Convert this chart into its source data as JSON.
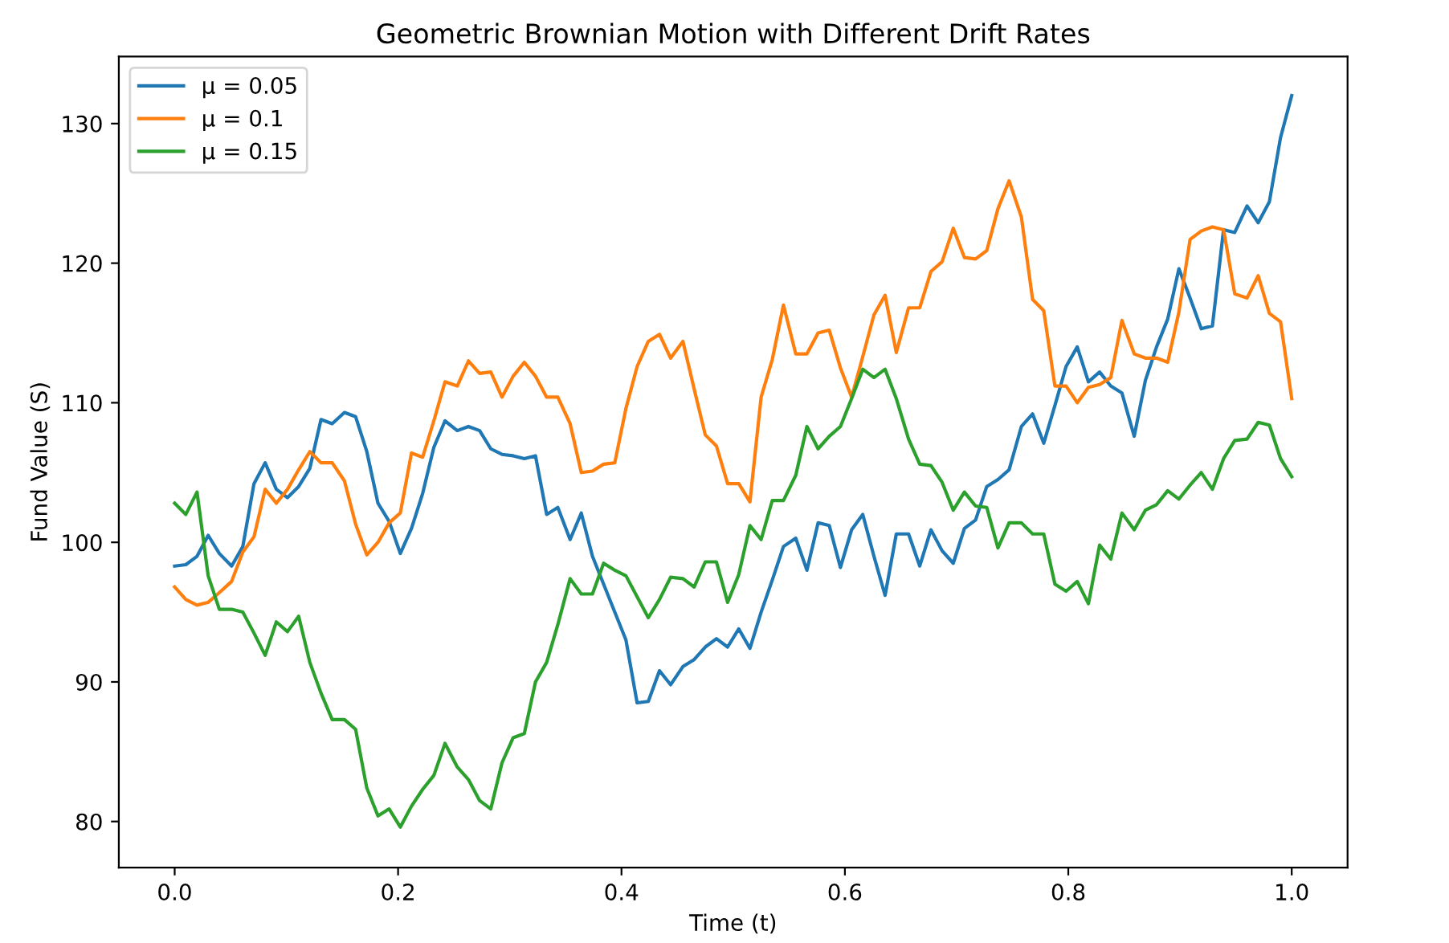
{
  "chart_data": {
    "type": "line",
    "title": "Geometric Brownian Motion with Different Drift Rates",
    "xlabel": "Time (t)",
    "ylabel": "Fund Value (S)",
    "x": [
      0.0,
      0.01,
      0.02,
      0.03,
      0.04,
      0.051,
      0.061,
      0.071,
      0.081,
      0.091,
      0.101,
      0.111,
      0.121,
      0.131,
      0.141,
      0.152,
      0.162,
      0.172,
      0.182,
      0.192,
      0.202,
      0.212,
      0.222,
      0.232,
      0.242,
      0.253,
      0.263,
      0.273,
      0.283,
      0.293,
      0.303,
      0.313,
      0.323,
      0.333,
      0.343,
      0.354,
      0.364,
      0.374,
      0.384,
      0.394,
      0.404,
      0.414,
      0.424,
      0.434,
      0.444,
      0.455,
      0.465,
      0.475,
      0.485,
      0.495,
      0.505,
      0.515,
      0.525,
      0.535,
      0.545,
      0.556,
      0.566,
      0.576,
      0.586,
      0.596,
      0.606,
      0.616,
      0.626,
      0.636,
      0.646,
      0.657,
      0.667,
      0.677,
      0.687,
      0.697,
      0.707,
      0.717,
      0.727,
      0.737,
      0.747,
      0.758,
      0.768,
      0.778,
      0.788,
      0.798,
      0.808,
      0.818,
      0.828,
      0.838,
      0.848,
      0.859,
      0.869,
      0.879,
      0.889,
      0.899,
      0.909,
      0.919,
      0.929,
      0.939,
      0.949,
      0.96,
      0.97,
      0.98,
      0.99,
      1.0
    ],
    "series": [
      {
        "name": "μ = 0.05",
        "color": "#1f77b4",
        "values": [
          98.3,
          98.4,
          99,
          100.5,
          99.2,
          98.3,
          99.7,
          104.2,
          105.7,
          103.8,
          103.2,
          104,
          105.3,
          108.8,
          108.5,
          109.3,
          109,
          106.5,
          102.8,
          101.5,
          99.2,
          101,
          103.5,
          106.8,
          108.7,
          108,
          108.3,
          108,
          106.7,
          106.3,
          106.2,
          106,
          106.2,
          102,
          102.5,
          100.2,
          102.1,
          99,
          97,
          95,
          93,
          88.5,
          88.6,
          90.8,
          89.8,
          91.1,
          91.6,
          92.5,
          93.1,
          92.5,
          93.8,
          92.4,
          95,
          97.3,
          99.7,
          100.3,
          98,
          101.4,
          101.2,
          98.2,
          100.9,
          102,
          99,
          96.2,
          100.6,
          100.6,
          98.3,
          100.9,
          99.4,
          98.5,
          101,
          101.6,
          104,
          104.5,
          105.2,
          108.3,
          109.2,
          107.1,
          109.8,
          112.6,
          114,
          111.5,
          112.2,
          111.2,
          110.7,
          107.6,
          111.6,
          114,
          116,
          119.6,
          117.5,
          115.3,
          115.5,
          122.4,
          122.2,
          124.1,
          122.9,
          124.4,
          129,
          132
        ]
      },
      {
        "name": "μ = 0.1",
        "color": "#ff7f0e",
        "values": [
          96.8,
          95.9,
          95.5,
          95.7,
          96.4,
          97.2,
          99.3,
          100.4,
          103.8,
          102.8,
          103.8,
          105.2,
          106.5,
          105.7,
          105.7,
          104.4,
          101.3,
          99.1,
          100,
          101.4,
          102.1,
          106.4,
          106.1,
          108.7,
          111.5,
          111.2,
          113,
          112.1,
          112.2,
          110.4,
          111.9,
          112.9,
          111.9,
          110.4,
          110.4,
          108.5,
          105,
          105.1,
          105.6,
          105.7,
          109.6,
          112.6,
          114.4,
          114.9,
          113.2,
          114.4,
          111,
          107.7,
          106.9,
          104.2,
          104.2,
          102.9,
          110.4,
          113.1,
          117,
          113.5,
          113.5,
          115,
          115.2,
          112.5,
          110.4,
          113.3,
          116.3,
          117.7,
          113.6,
          116.8,
          116.8,
          119.4,
          120.1,
          122.5,
          120.4,
          120.3,
          120.9,
          123.9,
          125.9,
          123.3,
          117.4,
          116.6,
          111.2,
          111.2,
          110,
          111.1,
          111.3,
          111.8,
          115.9,
          113.5,
          113.2,
          113.2,
          112.9,
          116.5,
          121.7,
          122.3,
          122.6,
          122.4,
          117.8,
          117.5,
          119.1,
          116.4,
          115.8,
          110.3
        ]
      },
      {
        "name": "μ = 0.15",
        "color": "#2ca02c",
        "values": [
          102.8,
          102,
          103.6,
          97.6,
          95.2,
          95.2,
          95,
          93.5,
          91.9,
          94.3,
          93.6,
          94.7,
          91.4,
          89.2,
          87.3,
          87.3,
          86.6,
          82.4,
          80.4,
          80.9,
          79.6,
          81.1,
          82.3,
          83.3,
          85.6,
          83.9,
          83,
          81.5,
          80.9,
          84.2,
          86,
          86.3,
          90,
          91.4,
          94.1,
          97.4,
          96.3,
          96.3,
          98.5,
          98,
          97.6,
          96.1,
          94.6,
          95.9,
          97.5,
          97.4,
          96.8,
          98.6,
          98.6,
          95.7,
          97.7,
          101.2,
          100.2,
          103,
          103,
          104.8,
          108.3,
          106.7,
          107.6,
          108.3,
          110.3,
          112.4,
          111.8,
          112.4,
          110.3,
          107.4,
          105.6,
          105.5,
          104.3,
          102.3,
          103.6,
          102.6,
          102.5,
          99.6,
          101.4,
          101.4,
          100.6,
          100.6,
          97,
          96.5,
          97.2,
          95.6,
          99.8,
          98.8,
          102.1,
          100.9,
          102.3,
          102.7,
          103.7,
          103.1,
          104.1,
          105,
          103.8,
          106,
          107.3,
          107.4,
          108.6,
          108.4,
          106,
          104.7
        ]
      }
    ],
    "xlim": [
      -0.05,
      1.05
    ],
    "ylim": [
      76.7,
      134.8
    ],
    "xticks": [
      {
        "value": 0,
        "label": "0.0"
      },
      {
        "value": 0.2,
        "label": "0.2"
      },
      {
        "value": 0.4,
        "label": "0.4"
      },
      {
        "value": 0.6,
        "label": "0.6"
      },
      {
        "value": 0.8,
        "label": "0.8"
      },
      {
        "value": 1.0,
        "label": "1.0"
      }
    ],
    "yticks": [
      80,
      90,
      100,
      110,
      120,
      130
    ],
    "legend": "top left",
    "grid": false,
    "marker": "none",
    "line_style": "solid"
  }
}
